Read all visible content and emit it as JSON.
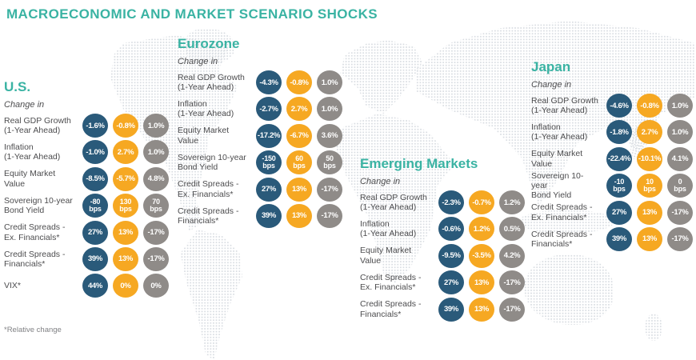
{
  "header": {
    "title": "MACROECONOMIC AND MARKET SCENARIO SHOCKS"
  },
  "labels": {
    "change_in": "Change in"
  },
  "footnote": "*Relative change",
  "colors": {
    "accent_teal": "#3ab3a3",
    "scenario_colors": [
      "#2a5a7a",
      "#f6a822",
      "#8f8b88"
    ],
    "label_text": "#4d4d4f",
    "map_dots": "#d9dde2"
  },
  "chart_data": {
    "type": "table",
    "title": "MACROECONOMIC AND MARKET SCENARIO SHOCKS",
    "note": "*Relative change",
    "column_colors": [
      "#2a5a7a",
      "#f6a822",
      "#8f8b88"
    ],
    "regions": [
      {
        "name": "U.S.",
        "rows": [
          {
            "label_lines": [
              "Real GDP Growth",
              "(1-Year Ahead)"
            ],
            "values": [
              "-1.6%",
              "-0.8%",
              "1.0%"
            ]
          },
          {
            "label_lines": [
              "Inflation",
              "(1-Year Ahead)"
            ],
            "values": [
              "-1.0%",
              "2.7%",
              "1.0%"
            ]
          },
          {
            "label_lines": [
              "Equity Market",
              "Value"
            ],
            "values": [
              "-8.5%",
              "-5.7%",
              "4.8%"
            ]
          },
          {
            "label_lines": [
              "Sovereign 10-year",
              "Bond Yield"
            ],
            "values": [
              "-80 bps",
              "130 bps",
              "70 bps"
            ]
          },
          {
            "label_lines": [
              "Credit Spreads -",
              "Ex. Financials*"
            ],
            "values": [
              "27%",
              "13%",
              "-17%"
            ]
          },
          {
            "label_lines": [
              "Credit Spreads -",
              "Financials*"
            ],
            "values": [
              "39%",
              "13%",
              "-17%"
            ]
          },
          {
            "label_lines": [
              "VIX*"
            ],
            "values": [
              "44%",
              "0%",
              "0%"
            ]
          }
        ]
      },
      {
        "name": "Eurozone",
        "rows": [
          {
            "label_lines": [
              "Real GDP Growth",
              "(1-Year Ahead)"
            ],
            "values": [
              "-4.3%",
              "-0.8%",
              "1.0%"
            ]
          },
          {
            "label_lines": [
              "Inflation",
              "(1-Year Ahead)"
            ],
            "values": [
              "-2.7%",
              "2.7%",
              "1.0%"
            ]
          },
          {
            "label_lines": [
              "Equity Market",
              "Value"
            ],
            "values": [
              "-17.2%",
              "-6.7%",
              "3.6%"
            ]
          },
          {
            "label_lines": [
              "Sovereign 10-year",
              "Bond Yield"
            ],
            "values": [
              "-150 bps",
              "60 bps",
              "50 bps"
            ]
          },
          {
            "label_lines": [
              "Credit Spreads -",
              "Ex. Financials*"
            ],
            "values": [
              "27%",
              "13%",
              "-17%"
            ]
          },
          {
            "label_lines": [
              "Credit Spreads -",
              "Financials*"
            ],
            "values": [
              "39%",
              "13%",
              "-17%"
            ]
          }
        ]
      },
      {
        "name": "Emerging Markets",
        "rows": [
          {
            "label_lines": [
              "Real GDP Growth",
              "(1-Year Ahead)"
            ],
            "values": [
              "-2.3%",
              "-0.7%",
              "1.2%"
            ]
          },
          {
            "label_lines": [
              "Inflation",
              "(1-Year Ahead)"
            ],
            "values": [
              "-0.6%",
              "1.2%",
              "0.5%"
            ]
          },
          {
            "label_lines": [
              "Equity Market",
              "Value"
            ],
            "values": [
              "-9.5%",
              "-3.5%",
              "4.2%"
            ]
          },
          {
            "label_lines": [
              "Credit Spreads -",
              "Ex. Financials*"
            ],
            "values": [
              "27%",
              "13%",
              "-17%"
            ]
          },
          {
            "label_lines": [
              "Credit Spreads -",
              "Financials*"
            ],
            "values": [
              "39%",
              "13%",
              "-17%"
            ]
          }
        ]
      },
      {
        "name": "Japan",
        "rows": [
          {
            "label_lines": [
              "Real GDP Growth",
              "(1-Year Ahead)"
            ],
            "values": [
              "-4.6%",
              "-0.8%",
              "1.0%"
            ]
          },
          {
            "label_lines": [
              "Inflation",
              "(1-Year Ahead)"
            ],
            "values": [
              "-1.8%",
              "2.7%",
              "1.0%"
            ]
          },
          {
            "label_lines": [
              "Equity Market",
              "Value"
            ],
            "values": [
              "-22.4%",
              "-10.1%",
              "4.1%"
            ]
          },
          {
            "label_lines": [
              "Sovereign 10-year",
              "Bond Yield"
            ],
            "values": [
              "-10 bps",
              "10 bps",
              "0 bps"
            ]
          },
          {
            "label_lines": [
              "Credit Spreads -",
              "Ex. Financials*"
            ],
            "values": [
              "27%",
              "13%",
              "-17%"
            ]
          },
          {
            "label_lines": [
              "Credit Spreads -",
              "Financials*"
            ],
            "values": [
              "39%",
              "13%",
              "-17%"
            ]
          }
        ]
      }
    ]
  }
}
